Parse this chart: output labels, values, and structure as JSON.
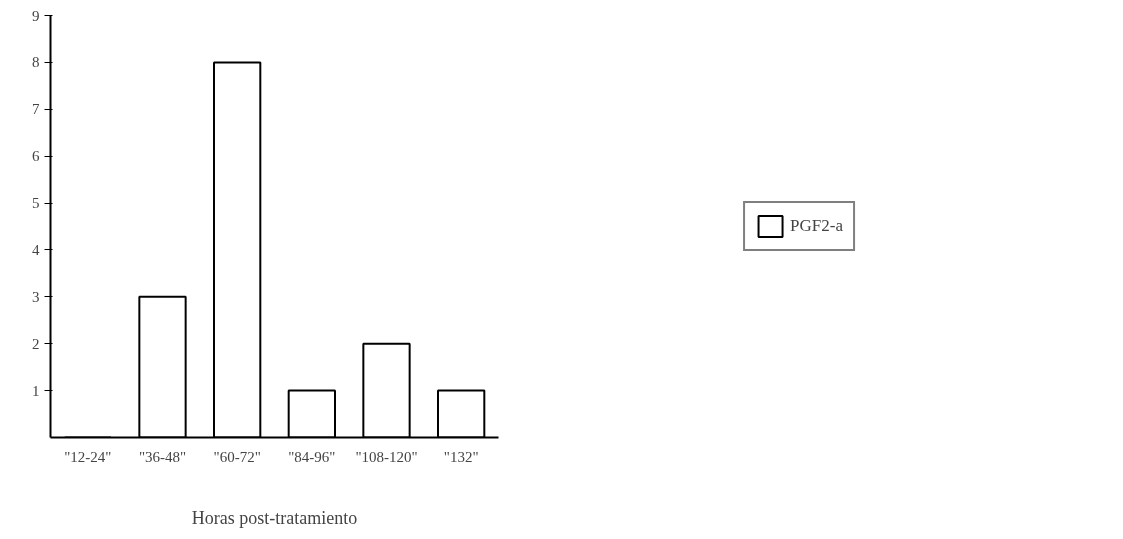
{
  "chart_data": {
    "type": "bar",
    "xlabel": "Horas post-tratamiento",
    "categories": [
      "\"12-24\"",
      "\"36-48\"",
      "\"60-72\"",
      "\"84-96\"",
      "\"108-120\"",
      "\"132\""
    ],
    "series": [
      {
        "name": "PGF2-a",
        "color": "#ffffff",
        "values": [
          0,
          3,
          8,
          1,
          2,
          1
        ]
      }
    ],
    "ylim": [
      0,
      9
    ],
    "yticks": [
      1,
      2,
      3,
      4,
      5,
      6,
      7,
      8,
      9
    ],
    "grid": false,
    "legend": "right"
  }
}
